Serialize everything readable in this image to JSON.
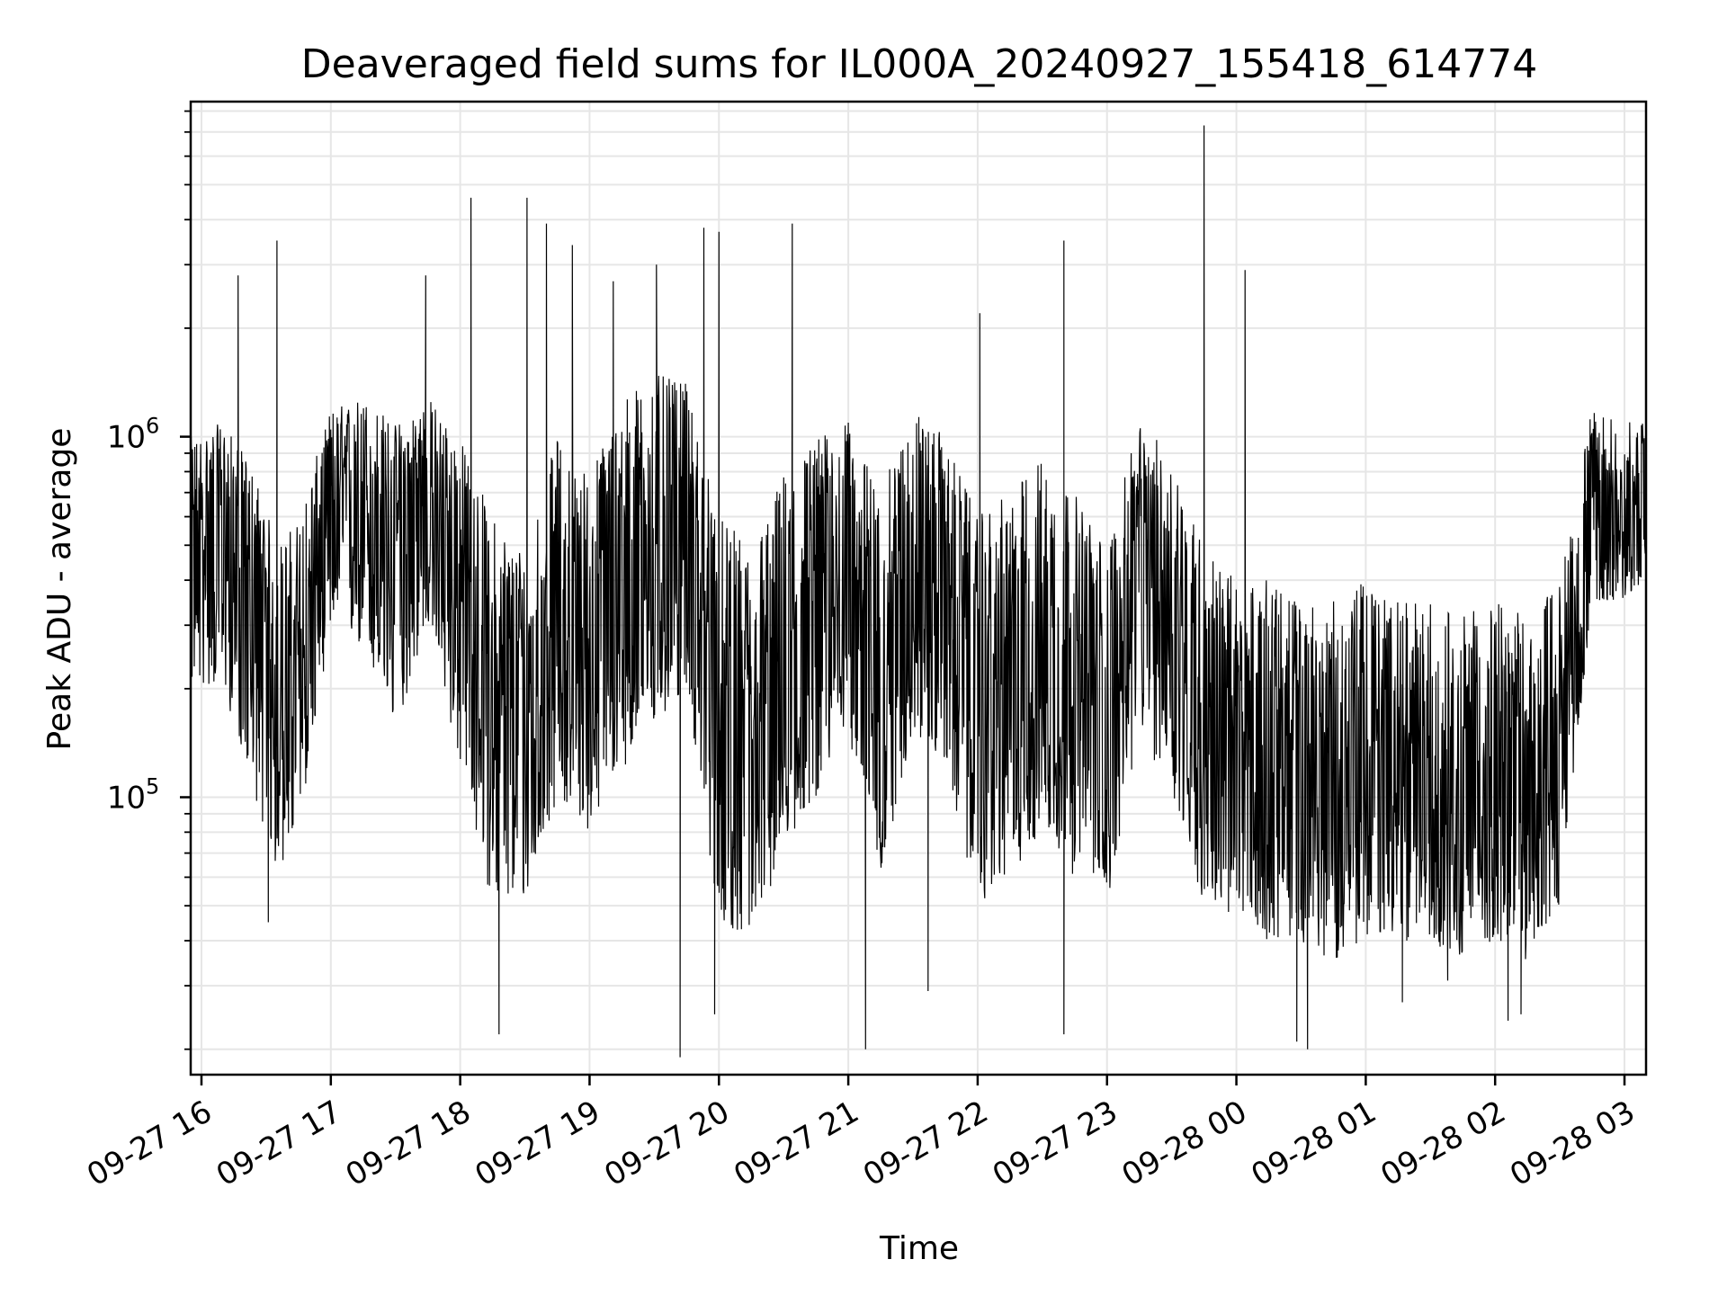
{
  "chart_data": {
    "type": "line",
    "title": "Deaveraged field sums for IL000A_20240927_155418_614774",
    "xlabel": "Time",
    "ylabel": "Peak ADU - average",
    "yscale": "log",
    "ylim": [
      17000,
      8500000
    ],
    "xlim": [
      "2024-09-27 15:55",
      "2024-09-28 03:10"
    ],
    "x_ticks": [
      {
        "time": "2024-09-27 16:00",
        "label": "09-27 16"
      },
      {
        "time": "2024-09-27 17:00",
        "label": "09-27 17"
      },
      {
        "time": "2024-09-27 18:00",
        "label": "09-27 18"
      },
      {
        "time": "2024-09-27 19:00",
        "label": "09-27 19"
      },
      {
        "time": "2024-09-27 20:00",
        "label": "09-27 20"
      },
      {
        "time": "2024-09-27 21:00",
        "label": "09-27 21"
      },
      {
        "time": "2024-09-27 22:00",
        "label": "09-27 22"
      },
      {
        "time": "2024-09-27 23:00",
        "label": "09-27 23"
      },
      {
        "time": "2024-09-28 00:00",
        "label": "09-28 00"
      },
      {
        "time": "2024-09-28 01:00",
        "label": "09-28 01"
      },
      {
        "time": "2024-09-28 02:00",
        "label": "09-28 02"
      },
      {
        "time": "2024-09-28 03:00",
        "label": "09-28 03"
      }
    ],
    "y_ticks": [
      {
        "value": 100000,
        "base": "10",
        "exp": "5"
      },
      {
        "value": 1000000,
        "base": "10",
        "exp": "6"
      }
    ],
    "grid": true,
    "line_color": "#000000",
    "grid_color": "#e6e6e6",
    "series": [
      {
        "x": [
          "2024-09-27 15:55",
          "2024-09-27 16:10",
          "2024-09-27 16:25",
          "2024-09-27 16:35",
          "2024-09-27 16:45",
          "2024-09-27 17:00",
          "2024-09-27 17:15",
          "2024-09-27 17:30",
          "2024-09-27 17:45",
          "2024-09-27 18:00",
          "2024-09-27 18:15",
          "2024-09-27 18:30",
          "2024-09-27 18:45",
          "2024-09-27 19:00",
          "2024-09-27 19:15",
          "2024-09-27 19:30",
          "2024-09-27 19:45",
          "2024-09-27 20:00",
          "2024-09-27 20:15",
          "2024-09-27 20:30",
          "2024-09-27 20:45",
          "2024-09-27 21:00",
          "2024-09-27 21:15",
          "2024-09-27 21:30",
          "2024-09-27 21:45",
          "2024-09-27 22:00",
          "2024-09-27 22:15",
          "2024-09-27 22:30",
          "2024-09-27 22:45",
          "2024-09-27 23:00",
          "2024-09-27 23:15",
          "2024-09-27 23:30",
          "2024-09-27 23:45",
          "2024-09-28 00:00",
          "2024-09-28 00:15",
          "2024-09-28 00:30",
          "2024-09-28 00:45",
          "2024-09-28 01:00",
          "2024-09-28 01:15",
          "2024-09-28 01:30",
          "2024-09-28 01:45",
          "2024-09-28 02:00",
          "2024-09-28 02:15",
          "2024-09-28 02:30",
          "2024-09-28 02:45",
          "2024-09-28 03:00",
          "2024-09-28 03:10"
        ],
        "y": [
          500000,
          550000,
          300000,
          180000,
          200000,
          600000,
          650000,
          450000,
          700000,
          350000,
          180000,
          150000,
          300000,
          250000,
          400000,
          450000,
          600000,
          150000,
          100000,
          200000,
          350000,
          450000,
          200000,
          500000,
          400000,
          150000,
          200000,
          250000,
          180000,
          120000,
          500000,
          350000,
          150000,
          120000,
          130000,
          110000,
          100000,
          120000,
          110000,
          105000,
          100000,
          110000,
          100000,
          130000,
          650000,
          600000,
          650000
        ],
        "noise_band_low": [
          200000,
          200000,
          100000,
          60000,
          80000,
          300000,
          250000,
          150000,
          300000,
          120000,
          50000,
          50000,
          100000,
          80000,
          120000,
          150000,
          200000,
          45000,
          40000,
          70000,
          100000,
          150000,
          60000,
          150000,
          120000,
          50000,
          60000,
          80000,
          60000,
          50000,
          150000,
          100000,
          50000,
          45000,
          40000,
          40000,
          35000,
          40000,
          40000,
          40000,
          35000,
          40000,
          35000,
          50000,
          350000,
          350000,
          400000
        ],
        "noise_band_high": [
          1000000,
          1100000,
          800000,
          500000,
          600000,
          1200000,
          1300000,
          1100000,
          1300000,
          1000000,
          600000,
          500000,
          1000000,
          800000,
          1300000,
          1500000,
          1400000,
          600000,
          500000,
          800000,
          1000000,
          1100000,
          700000,
          1200000,
          1000000,
          600000,
          700000,
          900000,
          700000,
          500000,
          1100000,
          900000,
          500000,
          400000,
          400000,
          350000,
          350000,
          400000,
          350000,
          350000,
          320000,
          350000,
          320000,
          400000,
          1200000,
          1100000,
          1100000
        ],
        "spikes": [
          {
            "time": "2024-09-27 16:17",
            "value": 2800000
          },
          {
            "time": "2024-09-27 16:35",
            "value": 3500000
          },
          {
            "time": "2024-09-27 17:44",
            "value": 2800000
          },
          {
            "time": "2024-09-27 18:05",
            "value": 4600000
          },
          {
            "time": "2024-09-27 18:31",
            "value": 4600000
          },
          {
            "time": "2024-09-27 18:40",
            "value": 3900000
          },
          {
            "time": "2024-09-27 18:52",
            "value": 3400000
          },
          {
            "time": "2024-09-27 19:11",
            "value": 2700000
          },
          {
            "time": "2024-09-27 19:31",
            "value": 3000000
          },
          {
            "time": "2024-09-27 19:53",
            "value": 3800000
          },
          {
            "time": "2024-09-27 20:00",
            "value": 3700000
          },
          {
            "time": "2024-09-27 20:34",
            "value": 3900000
          },
          {
            "time": "2024-09-27 22:01",
            "value": 2200000
          },
          {
            "time": "2024-09-27 22:40",
            "value": 3500000
          },
          {
            "time": "2024-09-27 23:45",
            "value": 7300000
          },
          {
            "time": "2024-09-28 00:04",
            "value": 2900000
          }
        ],
        "dips": [
          {
            "time": "2024-09-27 16:31",
            "value": 45000
          },
          {
            "time": "2024-09-27 18:18",
            "value": 22000
          },
          {
            "time": "2024-09-27 19:42",
            "value": 19000
          },
          {
            "time": "2024-09-27 19:58",
            "value": 25000
          },
          {
            "time": "2024-09-27 21:08",
            "value": 20000
          },
          {
            "time": "2024-09-27 21:37",
            "value": 29000
          },
          {
            "time": "2024-09-27 22:40",
            "value": 22000
          },
          {
            "time": "2024-09-28 00:28",
            "value": 21000
          },
          {
            "time": "2024-09-28 00:33",
            "value": 20000
          },
          {
            "time": "2024-09-28 01:17",
            "value": 27000
          },
          {
            "time": "2024-09-28 01:38",
            "value": 31000
          },
          {
            "time": "2024-09-28 02:06",
            "value": 24000
          },
          {
            "time": "2024-09-28 02:12",
            "value": 25000
          }
        ]
      }
    ]
  }
}
